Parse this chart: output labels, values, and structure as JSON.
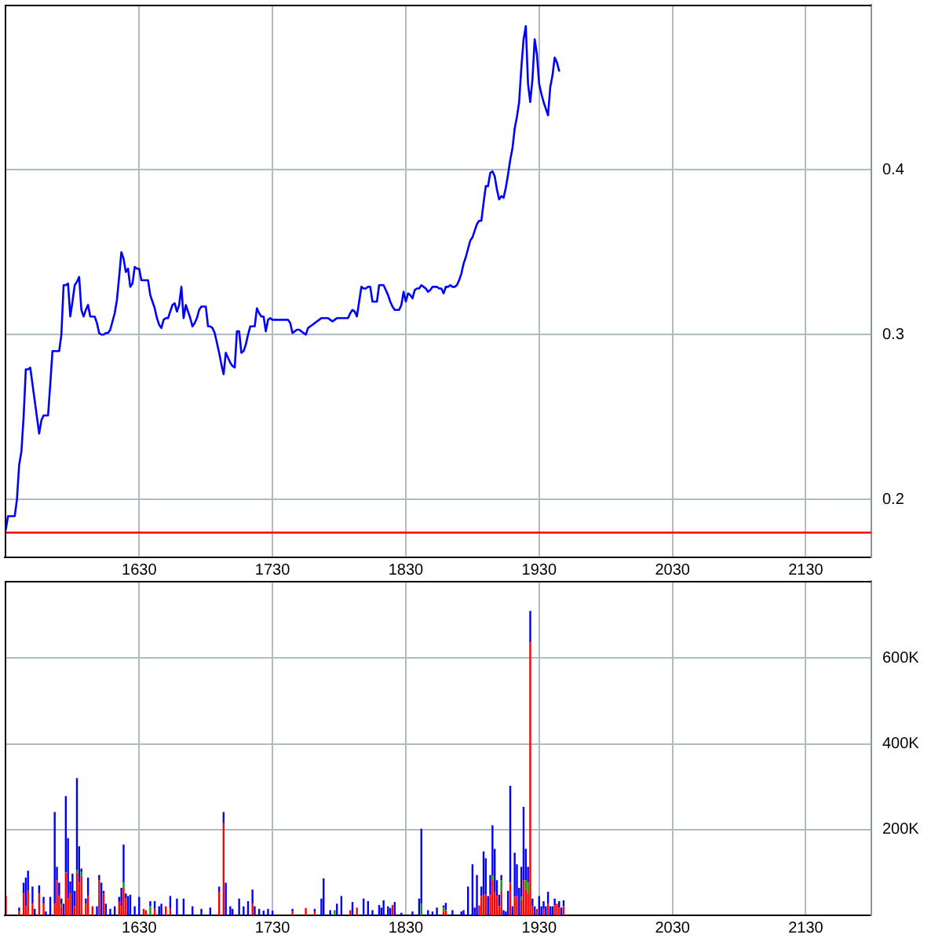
{
  "chart_data": [
    {
      "type": "line",
      "categories": [
        null,
        null,
        null,
        null,
        null,
        null,
        null,
        null,
        null,
        null,
        null,
        null,
        null,
        null,
        null,
        null,
        null,
        null,
        null,
        null,
        null,
        null,
        null,
        null,
        null,
        null,
        null,
        null,
        null,
        null,
        null,
        null,
        null,
        null,
        null,
        null,
        null,
        null,
        null,
        null,
        null,
        null,
        null,
        null,
        null,
        null,
        null,
        null,
        null,
        null,
        null,
        null,
        null,
        null,
        null,
        null,
        null,
        null,
        null,
        null,
        "1630",
        null,
        null,
        null,
        null,
        null,
        null,
        null,
        null,
        null,
        null,
        null,
        null,
        null,
        null,
        null,
        null,
        null,
        null,
        null,
        null,
        null,
        null,
        null,
        null,
        null,
        null,
        null,
        null,
        null,
        null,
        null,
        null,
        null,
        null,
        null,
        null,
        null,
        null,
        null,
        null,
        null,
        null,
        null,
        null,
        null,
        null,
        null,
        null,
        null,
        null,
        null,
        null,
        null,
        null,
        null,
        null,
        null,
        null,
        null,
        "1730",
        null,
        null,
        null,
        null,
        null,
        null,
        null,
        null,
        null,
        null,
        null,
        null,
        null,
        null,
        null,
        null,
        null,
        null,
        null,
        null,
        null,
        null,
        null,
        null,
        null,
        null,
        null,
        null,
        null,
        null,
        null,
        null,
        null,
        null,
        null,
        null,
        null,
        null,
        null,
        null,
        null,
        null,
        null,
        null,
        null,
        null,
        null,
        null,
        null,
        null,
        null,
        null,
        null,
        null,
        null,
        null,
        null,
        null,
        null,
        "1830",
        null,
        null,
        null,
        null,
        null,
        null,
        null,
        null,
        null,
        null,
        null,
        null,
        null,
        null,
        null,
        null,
        null,
        null,
        null,
        null,
        null,
        null,
        null,
        null,
        null,
        null,
        null,
        null,
        null,
        null,
        null,
        null,
        null,
        null,
        null,
        null,
        null,
        null,
        null,
        null,
        null,
        null,
        null,
        null,
        null,
        null,
        null,
        null,
        null,
        null,
        null,
        null,
        null,
        null,
        null,
        null,
        null,
        null,
        null,
        "1930",
        null,
        null,
        null,
        null,
        null,
        null,
        null,
        null,
        null,
        null,
        null,
        null,
        null,
        null,
        null,
        null,
        null,
        null,
        null,
        null,
        null,
        null,
        null,
        null,
        null,
        null,
        null,
        null,
        null,
        null,
        null,
        null,
        null,
        null,
        null,
        null,
        null,
        null,
        null,
        null,
        null,
        null,
        null,
        null,
        null,
        null,
        null,
        null,
        null,
        null,
        null,
        null,
        null,
        null,
        null,
        null,
        null,
        null,
        null,
        "2030",
        null,
        null,
        null,
        null,
        null,
        null,
        null,
        null,
        null,
        null,
        null,
        null,
        null,
        null,
        null,
        null,
        null,
        null,
        null,
        null,
        null,
        null,
        null,
        null,
        null,
        null,
        null,
        null,
        null,
        null,
        null,
        null,
        null,
        null,
        null,
        null,
        null,
        null,
        null,
        null,
        null,
        null,
        null,
        null,
        null,
        null,
        null,
        null,
        null,
        null,
        null,
        null,
        null,
        null,
        null,
        null,
        null,
        null,
        null,
        "2130",
        null,
        null,
        null,
        null,
        null,
        null,
        null,
        null,
        null,
        null,
        null,
        null,
        null,
        null,
        null,
        null,
        null,
        null,
        null,
        null,
        null,
        null,
        null,
        null,
        null,
        null,
        null,
        null,
        null
      ],
      "values": [
        0.182,
        0.19,
        0.19,
        0.19,
        0.19,
        0.2,
        0.221,
        0.229,
        0.25,
        0.279,
        0.279,
        0.28,
        0.27,
        0.26,
        0.25,
        0.24,
        0.248,
        0.251,
        0.251,
        0.251,
        0.27,
        0.29,
        0.29,
        0.29,
        0.29,
        0.3,
        0.33,
        0.33,
        0.331,
        0.311,
        0.32,
        0.33,
        0.332,
        0.335,
        0.315,
        0.311,
        0.315,
        0.318,
        0.311,
        0.311,
        0.311,
        0.307,
        0.301,
        0.3,
        0.3,
        0.301,
        0.301,
        0.303,
        0.308,
        0.313,
        0.321,
        0.335,
        0.35,
        0.346,
        0.338,
        0.34,
        0.329,
        0.331,
        0.341,
        0.34,
        0.34,
        0.333,
        0.333,
        0.333,
        0.333,
        0.324,
        0.32,
        0.316,
        0.31,
        0.306,
        0.304,
        0.309,
        0.31,
        0.31,
        0.314,
        0.318,
        0.319,
        0.314,
        0.318,
        0.329,
        0.31,
        0.318,
        0.314,
        0.31,
        0.305,
        0.307,
        0.31,
        0.315,
        0.317,
        0.317,
        0.317,
        0.305,
        0.305,
        0.304,
        0.301,
        0.295,
        0.289,
        0.282,
        0.276,
        0.289,
        0.286,
        0.283,
        0.281,
        0.28,
        0.302,
        0.302,
        0.289,
        0.29,
        0.294,
        0.3,
        0.305,
        0.305,
        0.305,
        0.316,
        0.313,
        0.311,
        0.311,
        0.302,
        0.309,
        0.31,
        0.309,
        0.309,
        0.309,
        0.309,
        0.309,
        0.309,
        0.309,
        0.309,
        0.307,
        0.301,
        0.302,
        0.303,
        0.303,
        0.302,
        0.301,
        0.3,
        0.304,
        0.305,
        0.306,
        0.307,
        0.308,
        0.309,
        0.31,
        0.31,
        0.31,
        0.31,
        0.309,
        0.308,
        0.309,
        0.31,
        0.31,
        0.31,
        0.31,
        0.31,
        0.31,
        0.313,
        0.315,
        0.314,
        0.311,
        0.32,
        0.329,
        0.328,
        0.328,
        0.329,
        0.329,
        0.32,
        0.32,
        0.32,
        0.33,
        0.33,
        0.33,
        0.327,
        0.324,
        0.32,
        0.317,
        0.315,
        0.315,
        0.315,
        0.318,
        0.326,
        0.32,
        0.325,
        0.324,
        0.322,
        0.327,
        0.328,
        0.328,
        0.33,
        0.329,
        0.328,
        0.326,
        0.327,
        0.329,
        0.329,
        0.329,
        0.328,
        0.328,
        0.325,
        0.329,
        0.329,
        0.33,
        0.329,
        0.329,
        0.33,
        0.333,
        0.337,
        0.343,
        0.347,
        0.352,
        0.357,
        0.359,
        0.363,
        0.367,
        0.369,
        0.369,
        0.38,
        0.39,
        0.39,
        0.398,
        0.399,
        0.396,
        0.388,
        0.382,
        0.384,
        0.383,
        0.389,
        0.397,
        0.406,
        0.413,
        0.425,
        0.432,
        0.441,
        0.462,
        0.479,
        0.487,
        0.452,
        0.441,
        0.455,
        0.479,
        0.47,
        0.452,
        0.446,
        0.441,
        0.437,
        0.433,
        0.45,
        0.457,
        0.468,
        0.465,
        0.46,
        null,
        null,
        null,
        null,
        null,
        null,
        null,
        null,
        null,
        null,
        null,
        null,
        null,
        null,
        null,
        null,
        null,
        null,
        null,
        null,
        null,
        null,
        null,
        null,
        null,
        null,
        null,
        null,
        null,
        null,
        null,
        null,
        null,
        null,
        null,
        null,
        null,
        null,
        null,
        null,
        null,
        null,
        null,
        null,
        null,
        null,
        null,
        null,
        null,
        null,
        null,
        null,
        null,
        null,
        null,
        null,
        null,
        null,
        null,
        null,
        null,
        null,
        null,
        null,
        null,
        null,
        null,
        null,
        null,
        null,
        null,
        null,
        null,
        null,
        null,
        null,
        null,
        null,
        null,
        null,
        null,
        null,
        null,
        null,
        null,
        null,
        null,
        null,
        null,
        null,
        null,
        null,
        null,
        null,
        null,
        null,
        null,
        null,
        null,
        null,
        null,
        null,
        null,
        null,
        null,
        null,
        null,
        null,
        null,
        null,
        null,
        null,
        null,
        null,
        null,
        null,
        null,
        null,
        null,
        null,
        null,
        null,
        null,
        null,
        null,
        null,
        null,
        null,
        null,
        null,
        null,
        null,
        null,
        null,
        null,
        null,
        null,
        null,
        null,
        null
      ],
      "color": "#0000ff",
      "ylim": [
        0.165,
        0.5
      ],
      "yticks": [
        0.2,
        0.3,
        0.4
      ],
      "grid": true,
      "ref_lines": [
        {
          "axis": "y",
          "value": 0.18,
          "color": "#ff0000"
        }
      ]
    },
    {
      "type": "bar",
      "stacked": true,
      "categories": [
        null,
        null,
        null,
        null,
        null,
        null,
        null,
        null,
        null,
        null,
        null,
        null,
        null,
        null,
        null,
        null,
        null,
        null,
        null,
        null,
        null,
        null,
        null,
        null,
        null,
        null,
        null,
        null,
        null,
        null,
        null,
        null,
        null,
        null,
        null,
        null,
        null,
        null,
        null,
        null,
        null,
        null,
        null,
        null,
        null,
        null,
        null,
        null,
        null,
        null,
        null,
        null,
        null,
        null,
        null,
        null,
        null,
        null,
        null,
        null,
        "1630",
        null,
        null,
        null,
        null,
        null,
        null,
        null,
        null,
        null,
        null,
        null,
        null,
        null,
        null,
        null,
        null,
        null,
        null,
        null,
        null,
        null,
        null,
        null,
        null,
        null,
        null,
        null,
        null,
        null,
        null,
        null,
        null,
        null,
        null,
        null,
        null,
        null,
        null,
        null,
        null,
        null,
        null,
        null,
        null,
        null,
        null,
        null,
        null,
        null,
        null,
        null,
        null,
        null,
        null,
        null,
        null,
        null,
        null,
        null,
        "1730",
        null,
        null,
        null,
        null,
        null,
        null,
        null,
        null,
        null,
        null,
        null,
        null,
        null,
        null,
        null,
        null,
        null,
        null,
        null,
        null,
        null,
        null,
        null,
        null,
        null,
        null,
        null,
        null,
        null,
        null,
        null,
        null,
        null,
        null,
        null,
        null,
        null,
        null,
        null,
        null,
        null,
        null,
        null,
        null,
        null,
        null,
        null,
        null,
        null,
        null,
        null,
        null,
        null,
        null,
        null,
        null,
        null,
        null,
        null,
        "1830",
        null,
        null,
        null,
        null,
        null,
        null,
        null,
        null,
        null,
        null,
        null,
        null,
        null,
        null,
        null,
        null,
        null,
        null,
        null,
        null,
        null,
        null,
        null,
        null,
        null,
        null,
        null,
        null,
        null,
        null,
        null,
        null,
        null,
        null,
        null,
        null,
        null,
        null,
        null,
        null,
        null,
        null,
        null,
        null,
        null,
        null,
        null,
        null,
        null,
        null,
        null,
        null,
        null,
        null,
        null,
        null,
        null,
        null,
        null,
        "1930",
        null,
        null,
        null,
        null,
        null,
        null,
        null,
        null,
        null,
        null,
        null,
        null,
        null,
        null,
        null,
        null,
        null,
        null,
        null,
        null,
        null,
        null,
        null,
        null,
        null,
        null,
        null,
        null,
        null,
        null,
        null,
        null,
        null,
        null,
        null,
        null,
        null,
        null,
        null,
        null,
        null,
        null,
        null,
        null,
        null,
        null,
        null,
        null,
        null,
        null,
        null,
        null,
        null,
        null,
        null,
        null,
        null,
        null,
        null,
        "2030",
        null,
        null,
        null,
        null,
        null,
        null,
        null,
        null,
        null,
        null,
        null,
        null,
        null,
        null,
        null,
        null,
        null,
        null,
        null,
        null,
        null,
        null,
        null,
        null,
        null,
        null,
        null,
        null,
        null,
        null,
        null,
        null,
        null,
        null,
        null,
        null,
        null,
        null,
        null,
        null,
        null,
        null,
        null,
        null,
        null,
        null,
        null,
        null,
        null,
        null,
        null,
        null,
        null,
        null,
        null,
        null,
        null,
        null,
        null,
        "2130",
        null,
        null,
        null,
        null,
        null,
        null,
        null,
        null,
        null,
        null,
        null,
        null,
        null,
        null,
        null,
        null,
        null,
        null,
        null,
        null,
        null,
        null,
        null,
        null,
        null,
        null,
        null,
        null,
        null
      ],
      "series": [
        {
          "color": "#ff0000",
          "values": [
            45000,
            null,
            null,
            null,
            null,
            null,
            11000,
            null,
            51000,
            21000,
            57000,
            null,
            27000,
            null,
            null,
            51000,
            null,
            27000,
            null,
            null,
            null,
            null,
            27000,
            82000,
            45000,
            21000,
            null,
            100000,
            39000,
            51000,
            null,
            21000,
            100000,
            76000,
            92000,
            null,
            27000,
            45000,
            null,
            21000,
            null,
            null,
            82000,
            null,
            51000,
            null,
            null,
            null,
            null,
            null,
            null,
            33000,
            21000,
            64000,
            39000,
            null,
            null,
            null,
            null,
            null,
            null,
            null,
            15000,
            12000,
            null,
            null,
            null,
            15000,
            null,
            null,
            null,
            null,
            21000,
            null,
            15000,
            null,
            null,
            null,
            null,
            null,
            null,
            null,
            null,
            null,
            null,
            null,
            null,
            null,
            null,
            null,
            null,
            null,
            null,
            null,
            null,
            null,
            55000,
            null,
            216000,
            null,
            null,
            null,
            null,
            null,
            null,
            null,
            null,
            null,
            null,
            null,
            null,
            27000,
            null,
            null,
            null,
            null,
            null,
            null,
            null,
            null,
            null,
            null,
            null,
            null,
            null,
            null,
            null,
            null,
            null,
            9000,
            null,
            null,
            null,
            null,
            null,
            17000,
            null,
            null,
            null,
            9000,
            null,
            null,
            null,
            null,
            null,
            null,
            null,
            null,
            null,
            null,
            null,
            null,
            null,
            null,
            null,
            12000,
            null,
            null,
            18000,
            null,
            null,
            null,
            null,
            null,
            null,
            null,
            null,
            null,
            null,
            null,
            null,
            null,
            null,
            null,
            24000,
            null,
            null,
            null,
            null,
            null,
            null,
            null,
            null,
            null,
            null,
            null,
            null,
            null,
            null,
            null,
            null,
            null,
            null,
            null,
            null,
            null,
            null,
            9000,
            12000,
            null,
            null,
            null,
            null,
            null,
            null,
            null,
            null,
            null,
            null,
            null,
            null,
            null,
            null,
            23000,
            45000,
            48000,
            48000,
            null,
            48000,
            82000,
            55000,
            45000,
            21000,
            57000,
            null,
            null,
            null,
            76000,
            null,
            43000,
            45000,
            null,
            35000,
            82000,
            60000,
            51000,
            636000,
            21000,
            null,
            15000,
            null,
            null,
            15000,
            null,
            27000,
            null,
            null,
            23000,
            27000,
            18000,
            null,
            21000,
            null,
            null,
            null,
            null,
            null,
            null,
            null,
            null,
            null,
            null,
            null,
            null,
            null,
            null,
            null,
            null,
            null,
            null,
            null,
            null,
            null,
            null,
            null,
            null,
            null,
            null,
            null,
            null,
            null,
            null,
            null,
            null,
            null,
            null,
            null,
            null,
            null,
            null,
            null,
            null,
            null,
            null,
            null,
            null,
            null,
            null,
            null,
            null,
            null,
            null,
            null,
            null,
            null,
            null,
            null,
            null,
            null,
            null,
            null,
            null,
            null,
            null,
            null,
            null,
            null,
            null,
            null,
            null,
            null,
            null,
            null,
            null,
            null,
            null,
            null,
            null,
            null,
            null,
            null,
            null,
            null,
            null,
            null,
            null,
            null,
            null,
            null,
            null,
            null,
            null,
            null,
            null,
            null,
            null,
            null,
            null,
            null,
            null,
            null,
            null,
            null,
            null,
            null,
            null,
            null,
            null,
            null,
            null,
            null,
            null,
            null,
            null,
            null,
            null,
            null,
            null,
            null,
            null,
            null,
            null,
            null,
            null,
            null,
            null,
            null,
            null,
            null,
            null,
            null,
            null,
            null,
            null,
            null,
            null,
            null,
            null,
            null,
            null
          ]
        },
        {
          "color": "#00a000",
          "values": [
            null,
            null,
            null,
            null,
            null,
            null,
            null,
            null,
            null,
            null,
            null,
            null,
            null,
            null,
            null,
            null,
            null,
            null,
            null,
            null,
            null,
            null,
            null,
            null,
            null,
            5000,
            null,
            null,
            null,
            null,
            null,
            null,
            6000,
            null,
            9000,
            null,
            null,
            null,
            null,
            null,
            null,
            null,
            null,
            null,
            null,
            null,
            null,
            null,
            null,
            null,
            null,
            null,
            null,
            12000,
            null,
            null,
            null,
            null,
            null,
            null,
            null,
            null,
            null,
            null,
            null,
            21000,
            null,
            null,
            null,
            null,
            null,
            null,
            null,
            null,
            null,
            null,
            null,
            null,
            null,
            null,
            null,
            null,
            null,
            null,
            null,
            null,
            null,
            null,
            null,
            null,
            null,
            null,
            null,
            null,
            null,
            null,
            null,
            null,
            null,
            null,
            null,
            null,
            null,
            null,
            null,
            null,
            null,
            null,
            null,
            null,
            null,
            null,
            null,
            null,
            null,
            null,
            null,
            null,
            null,
            null,
            null,
            null,
            null,
            null,
            null,
            null,
            null,
            null,
            null,
            null,
            null,
            null,
            null,
            null,
            null,
            null,
            null,
            null,
            null,
            null,
            null,
            null,
            null,
            null,
            null,
            null,
            null,
            null,
            12000,
            null,
            null,
            null,
            null,
            null,
            null,
            null,
            null,
            null,
            null,
            null,
            null,
            null,
            null,
            null,
            null,
            null,
            null,
            null,
            null,
            null,
            null,
            null,
            null,
            null,
            null,
            null,
            null,
            null,
            null,
            null,
            null,
            null,
            null,
            null,
            null,
            null,
            null,
            27000,
            null,
            null,
            null,
            null,
            null,
            null,
            null,
            null,
            null,
            9000,
            null,
            null,
            null,
            null,
            null,
            null,
            null,
            null,
            null,
            null,
            null,
            null,
            null,
            null,
            null,
            null,
            null,
            null,
            null,
            null,
            null,
            10000,
            null,
            null,
            null,
            25000,
            null,
            null,
            null,
            null,
            null,
            null,
            null,
            null,
            8000,
            null,
            22000,
            25000,
            null,
            null,
            null,
            null,
            null,
            null,
            null,
            null,
            null,
            null,
            null,
            null,
            null,
            null,
            null,
            null,
            null,
            null,
            null,
            null,
            null,
            null,
            null,
            null,
            null,
            null,
            null,
            null,
            null,
            null,
            null,
            null,
            null,
            null,
            null,
            null,
            null,
            null,
            null,
            null,
            null,
            null,
            null,
            null,
            null,
            null,
            null,
            null,
            null,
            null,
            null,
            null,
            null,
            null,
            null,
            null,
            null,
            null,
            null,
            null,
            null,
            null,
            null,
            null,
            null,
            null,
            null,
            null,
            null,
            null,
            null,
            null,
            null,
            null,
            null,
            null,
            null,
            null,
            null,
            null,
            null,
            null,
            null,
            null,
            null,
            null,
            null,
            null,
            null,
            null,
            null,
            null,
            null,
            null,
            null,
            null,
            null,
            null,
            null,
            null,
            null,
            null,
            null,
            null,
            null,
            null,
            null,
            null,
            null,
            null,
            null,
            null,
            null,
            null,
            null,
            null,
            null,
            null,
            null,
            null,
            null,
            null,
            null,
            null,
            null,
            null,
            null,
            null,
            null,
            null,
            null,
            null,
            null,
            null,
            null,
            null,
            null,
            null,
            null,
            null,
            null,
            null,
            null,
            null,
            null,
            null,
            null,
            null,
            null,
            null,
            null,
            null,
            null,
            null
          ]
        },
        {
          "color": "#0000ff",
          "values": [
            null,
            null,
            null,
            null,
            null,
            null,
            7000,
            null,
            25000,
            67000,
            47000,
            null,
            40000,
            15000,
            null,
            19000,
            null,
            16000,
            9000,
            null,
            43000,
            null,
            214000,
            31000,
            31000,
            13000,
            27000,
            178000,
            141000,
            28000,
            97000,
            36000,
            214000,
            85000,
            8000,
            null,
            12000,
            43000,
            null,
            null,
            null,
            21000,
            12000,
            76000,
            6000,
            27000,
            null,
            15000,
            null,
            21000,
            null,
            10000,
            43000,
            89000,
            12000,
            45000,
            48000,
            null,
            21000,
            null,
            43000,
            null,
            null,
            null,
            null,
            12000,
            null,
            18000,
            null,
            21000,
            27000,
            null,
            null,
            null,
            30000,
            null,
            null,
            39000,
            null,
            null,
            39000,
            null,
            null,
            null,
            21000,
            null,
            null,
            null,
            15000,
            null,
            null,
            null,
            18000,
            null,
            null,
            null,
            12000,
            null,
            25000,
            76000,
            null,
            21000,
            15000,
            null,
            null,
            39000,
            null,
            21000,
            null,
            33000,
            null,
            33000,
            21000,
            null,
            15000,
            null,
            11000,
            null,
            15000,
            null,
            11000,
            null,
            null,
            null,
            null,
            null,
            null,
            null,
            null,
            6000,
            null,
            null,
            null,
            null,
            null,
            null,
            null,
            null,
            null,
            6000,
            null,
            null,
            39000,
            86000,
            null,
            null,
            12000,
            null,
            null,
            27000,
            null,
            45000,
            null,
            null,
            null,
            null,
            31000,
            null,
            null,
            null,
            null,
            39000,
            null,
            33000,
            null,
            12000,
            null,
            null,
            24000,
            18000,
            35000,
            null,
            21000,
            17000,
            null,
            31000,
            null,
            null,
            6000,
            null,
            null,
            null,
            null,
            9000,
            null,
            null,
            39000,
            175000,
            null,
            null,
            12000,
            null,
            9000,
            null,
            18000,
            null,
            null,
            5000,
            17000,
            null,
            null,
            12000,
            null,
            null,
            null,
            9000,
            12000,
            null,
            67000,
            null,
            119000,
            18000,
            94000,
            null,
            22000,
            101000,
            85000,
            45000,
            46000,
            118000,
            100000,
            37000,
            27000,
            12000,
            12000,
            9000,
            57000,
            226000,
            21000,
            103000,
            74000,
            64000,
            70000,
            171000,
            73000,
            37000,
            74000,
            18000,
            21000,
            null,
            45000,
            21000,
            18000,
            21000,
            28000,
            21000,
            21000,
            16000,
            null,
            15000,
            18000,
            14000,
            null,
            null,
            null,
            null,
            null,
            null,
            null,
            null,
            null,
            null,
            null,
            null,
            null,
            null,
            null,
            null,
            null,
            null,
            null,
            null,
            null,
            null,
            null,
            null,
            null,
            null,
            null,
            null,
            null,
            null,
            null,
            null,
            null,
            null,
            null,
            null,
            null,
            null,
            null,
            null,
            null,
            null,
            null,
            null,
            null,
            null,
            null,
            null,
            null,
            null,
            null,
            null,
            null,
            null,
            null,
            null,
            null,
            null,
            null,
            null,
            null,
            null,
            null,
            null,
            null,
            null,
            null,
            null,
            null,
            null,
            null,
            null,
            null,
            null,
            null,
            null,
            null,
            null,
            null,
            null,
            null,
            null,
            null,
            null,
            null,
            null,
            null,
            null,
            null,
            null,
            null,
            null,
            null,
            null,
            null,
            null,
            null,
            null,
            null,
            null,
            null,
            null,
            null,
            null,
            null,
            null,
            null,
            null,
            null,
            null,
            null,
            null,
            null,
            null,
            null,
            null,
            null,
            null,
            null,
            null,
            null,
            null,
            null,
            null,
            null,
            null,
            null,
            null,
            null,
            null,
            null,
            null,
            null,
            null,
            null,
            null,
            null,
            null
          ]
        }
      ],
      "ylim": [
        0,
        780000
      ],
      "yticks": [
        {
          "value": 200000,
          "label": "200K"
        },
        {
          "value": 400000,
          "label": "400K"
        },
        {
          "value": 600000,
          "label": "600K"
        }
      ],
      "grid": true
    }
  ]
}
